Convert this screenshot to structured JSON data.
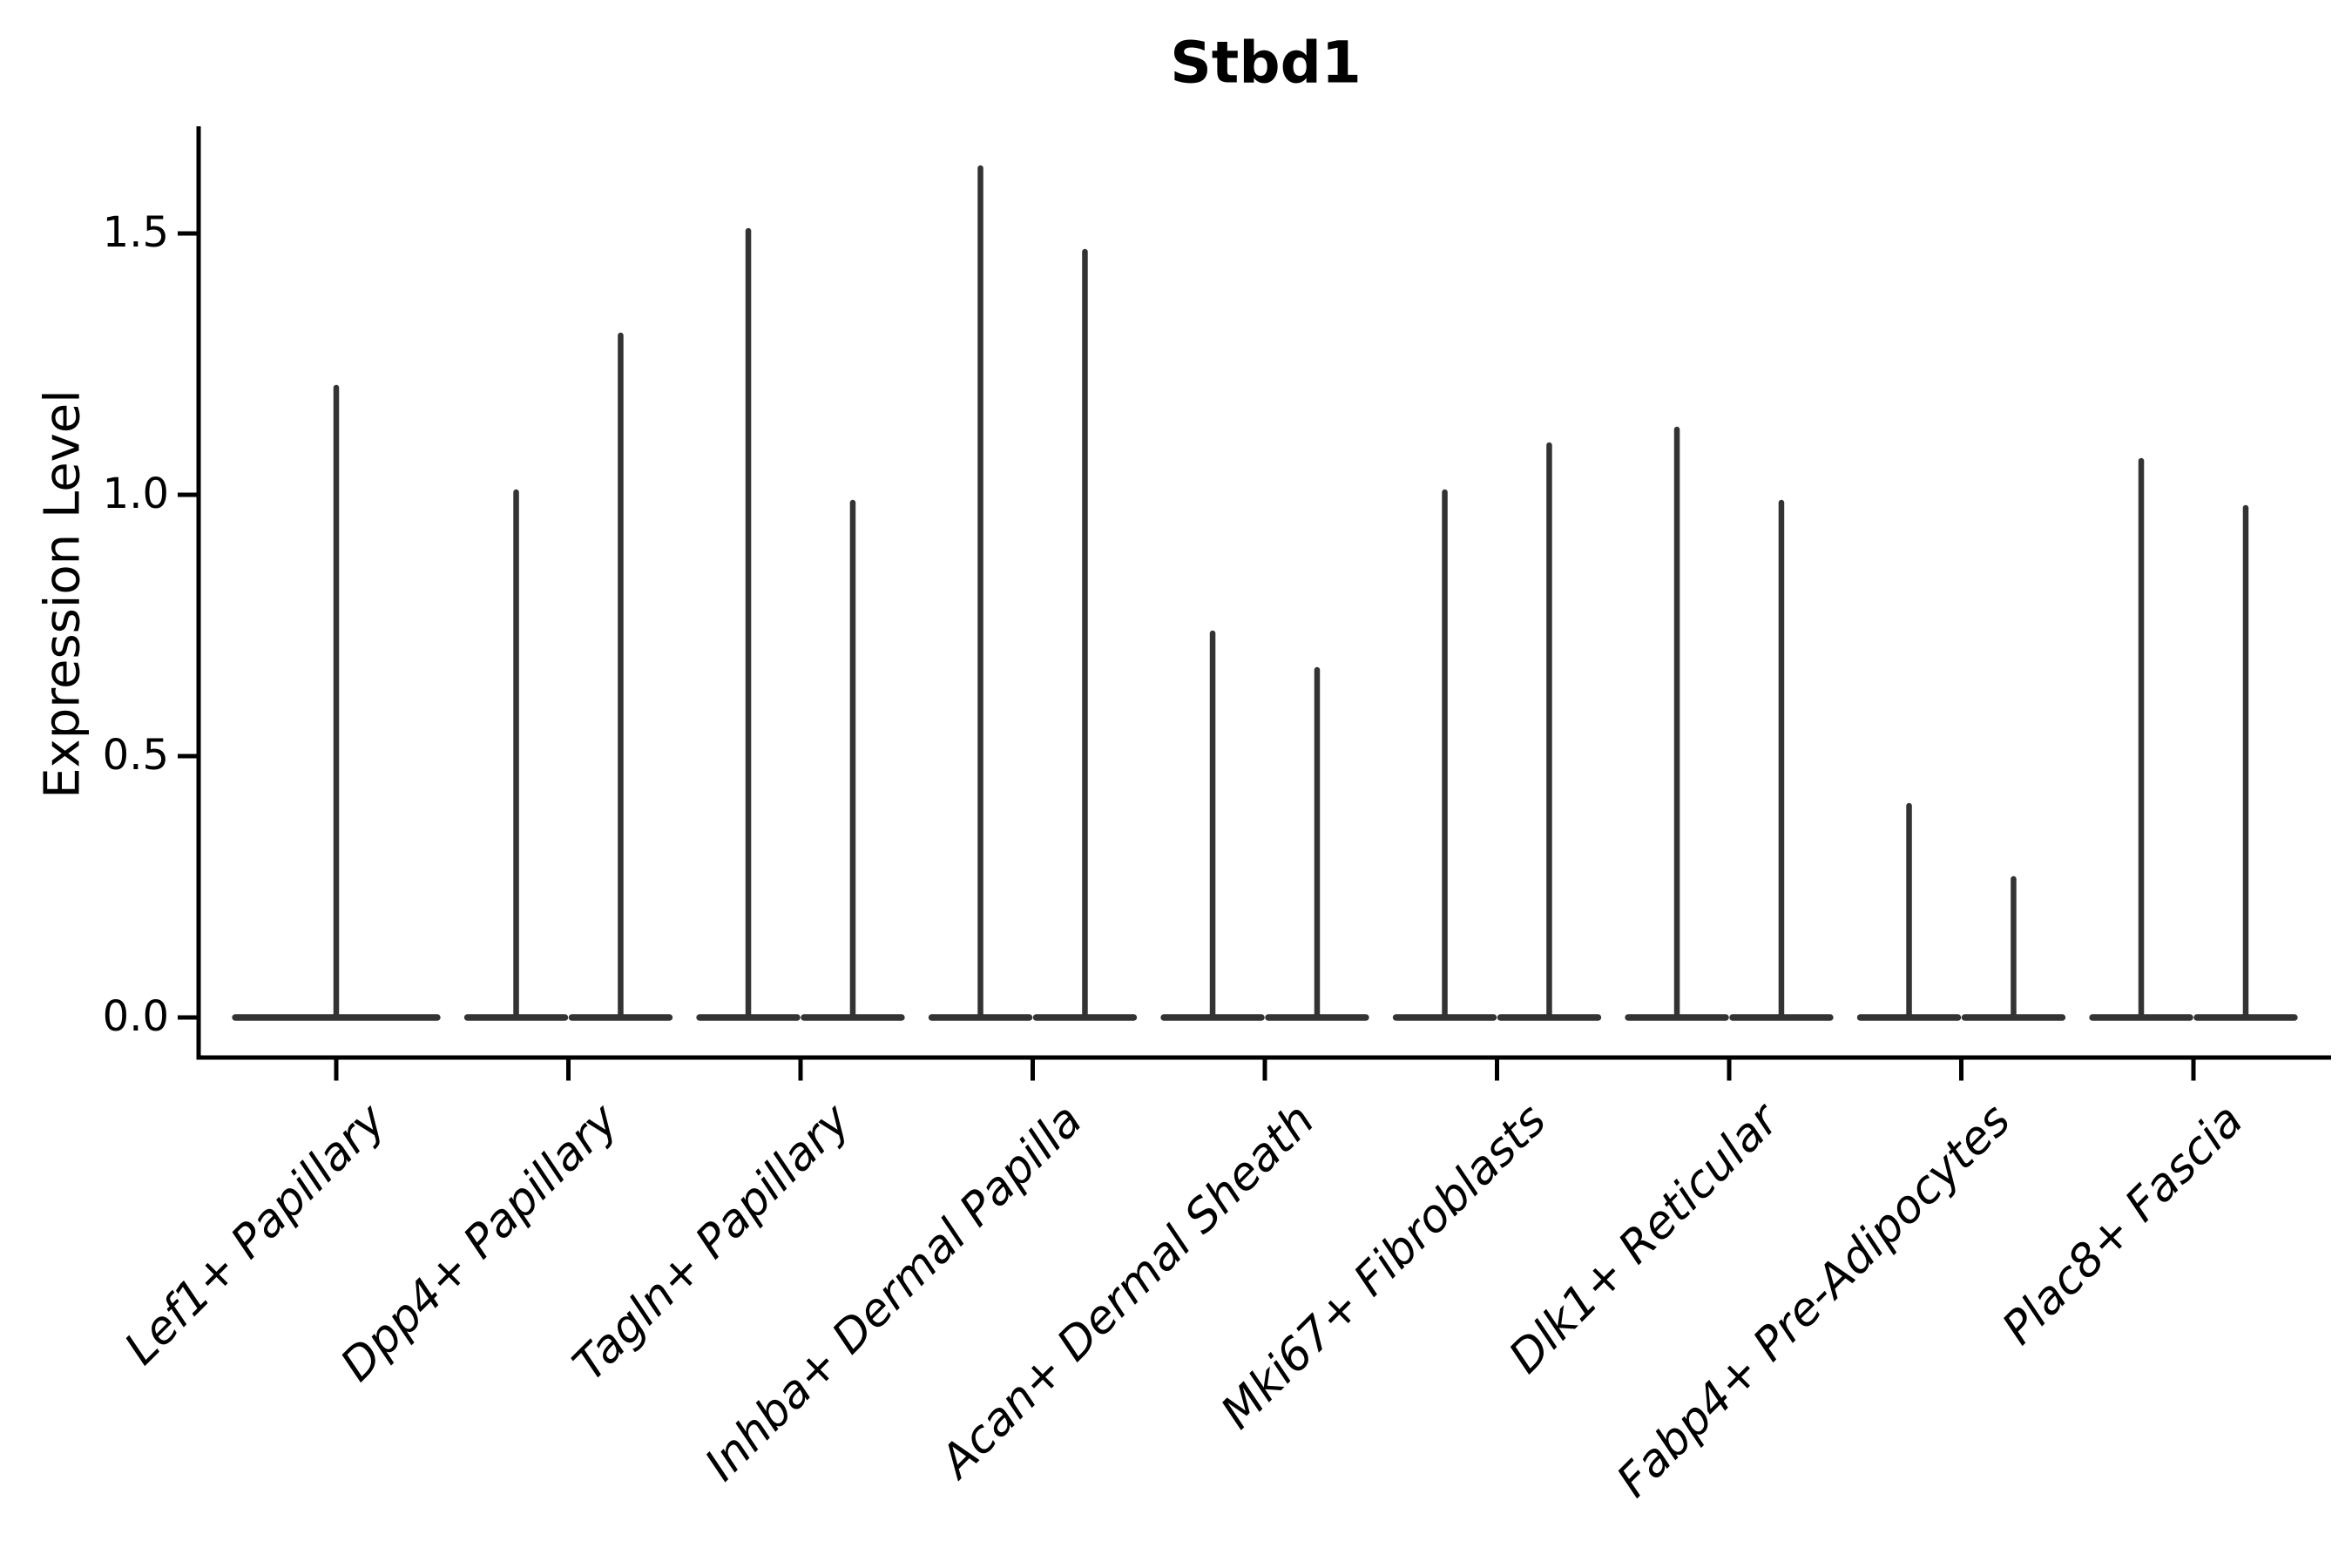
{
  "chart_data": {
    "type": "violin",
    "title": "Stbd1",
    "ylabel": "Expression Level",
    "xlabel": "",
    "ylim": [
      -0.08,
      1.71
    ],
    "grid": false,
    "legend": "none",
    "violin_color": "#333333",
    "axis_color": "#000000",
    "yticks": [
      {
        "value": 0.0,
        "label": "0.0"
      },
      {
        "value": 0.5,
        "label": "0.5"
      },
      {
        "value": 1.0,
        "label": "1.0"
      },
      {
        "value": 1.5,
        "label": "1.5"
      }
    ],
    "categories": [
      "Lef1+ Papillary",
      "Dpp4+ Papillary",
      "Tagln+ Papillary",
      "Inhba+ Dermal Papilla",
      "Acan+ Dermal Sheath",
      "Mki67+ Fibroblasts",
      "Dlk1+ Reticular",
      "Fabp4+ Pre-Adipocytes",
      "Plac8+ Fascia"
    ],
    "violins": [
      {
        "category": "Lef1+ Papillary",
        "spikes": [
          {
            "offset": 0.0,
            "halfwidth": 0.45,
            "max": 1.21
          }
        ]
      },
      {
        "category": "Dpp4+ Papillary",
        "spikes": [
          {
            "offset": -0.225,
            "halfwidth": 0.225,
            "max": 1.01
          },
          {
            "offset": 0.225,
            "halfwidth": 0.225,
            "max": 1.31
          }
        ]
      },
      {
        "category": "Tagln+ Papillary",
        "spikes": [
          {
            "offset": -0.225,
            "halfwidth": 0.225,
            "max": 1.51
          },
          {
            "offset": 0.225,
            "halfwidth": 0.225,
            "max": 0.99
          }
        ]
      },
      {
        "category": "Inhba+ Dermal Papilla",
        "spikes": [
          {
            "offset": -0.225,
            "halfwidth": 0.225,
            "max": 1.63
          },
          {
            "offset": 0.225,
            "halfwidth": 0.225,
            "max": 1.47
          }
        ]
      },
      {
        "category": "Acan+ Dermal Sheath",
        "spikes": [
          {
            "offset": -0.225,
            "halfwidth": 0.225,
            "max": 0.74
          },
          {
            "offset": 0.225,
            "halfwidth": 0.225,
            "max": 0.67
          }
        ]
      },
      {
        "category": "Mki67+ Fibroblasts",
        "spikes": [
          {
            "offset": -0.225,
            "halfwidth": 0.225,
            "max": 1.01
          },
          {
            "offset": 0.225,
            "halfwidth": 0.225,
            "max": 1.1
          }
        ]
      },
      {
        "category": "Dlk1+ Reticular",
        "spikes": [
          {
            "offset": -0.225,
            "halfwidth": 0.225,
            "max": 1.13
          },
          {
            "offset": 0.225,
            "halfwidth": 0.225,
            "max": 0.99
          }
        ]
      },
      {
        "category": "Fabp4+ Pre-Adipocytes",
        "spikes": [
          {
            "offset": -0.225,
            "halfwidth": 0.225,
            "max": 0.41
          },
          {
            "offset": 0.225,
            "halfwidth": 0.225,
            "max": 0.27
          }
        ]
      },
      {
        "category": "Plac8+ Fascia",
        "spikes": [
          {
            "offset": -0.225,
            "halfwidth": 0.225,
            "max": 1.07
          },
          {
            "offset": 0.225,
            "halfwidth": 0.225,
            "max": 0.98
          }
        ]
      }
    ]
  }
}
